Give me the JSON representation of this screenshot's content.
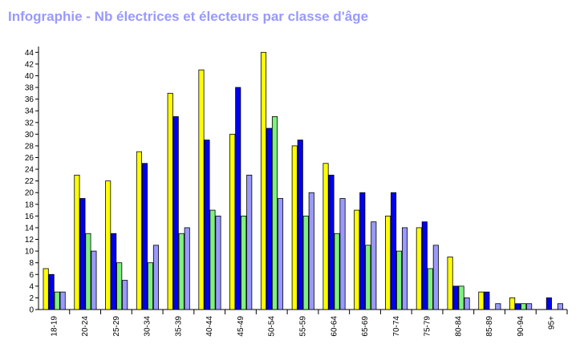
{
  "chart_data": {
    "type": "bar",
    "title": "Infographie - Nb électrices et électeurs par classe d'âge",
    "xlabel": "",
    "ylabel": "",
    "ylim": [
      0,
      45
    ],
    "yticks": [
      0,
      2,
      4,
      6,
      8,
      10,
      12,
      14,
      16,
      18,
      20,
      22,
      24,
      26,
      28,
      30,
      32,
      34,
      36,
      38,
      40,
      42,
      44
    ],
    "grid": false,
    "legend": "none",
    "categories": [
      "18-19",
      "20-24",
      "25-29",
      "30-34",
      "35-39",
      "40-44",
      "45-49",
      "50-54",
      "55-59",
      "60-64",
      "65-69",
      "70-74",
      "75-79",
      "80-84",
      "85-89",
      "90-94",
      "95+"
    ],
    "series": [
      {
        "color": "#ffff00",
        "values": [
          7,
          23,
          22,
          27,
          37,
          41,
          30,
          44,
          28,
          25,
          17,
          16,
          14,
          9,
          3,
          2,
          0
        ]
      },
      {
        "color": "#0000ee",
        "values": [
          6,
          19,
          13,
          25,
          33,
          29,
          38,
          31,
          29,
          23,
          20,
          20,
          15,
          4,
          3,
          1,
          2
        ]
      },
      {
        "color": "#80f080",
        "values": [
          3,
          13,
          8,
          8,
          13,
          17,
          16,
          33,
          16,
          13,
          11,
          10,
          7,
          4,
          0,
          1,
          0
        ]
      },
      {
        "color": "#9999ff",
        "values": [
          3,
          10,
          5,
          11,
          14,
          16,
          23,
          19,
          20,
          19,
          15,
          14,
          11,
          2,
          1,
          1,
          1
        ]
      }
    ]
  }
}
